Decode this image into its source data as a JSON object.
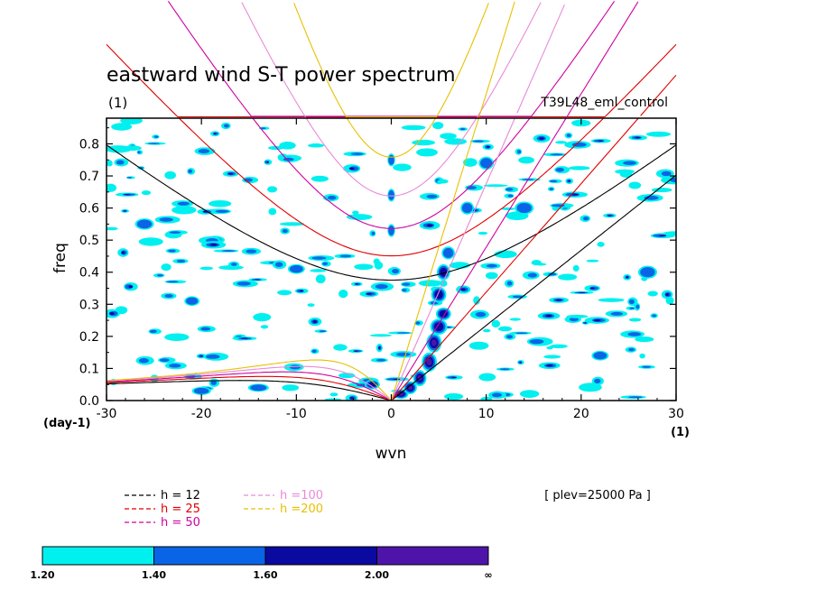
{
  "chart_data": {
    "type": "heatmap",
    "title": "eastward wind S-T power spectrum",
    "units_label": "(1)",
    "run_label": "T39L48_eml_control",
    "level_label": "[ plev=25000 Pa ]",
    "xlabel": "wvn",
    "ylabel": "freq",
    "x_units": "(1)",
    "y_units": "(day-1)",
    "xlim": [
      -30,
      30
    ],
    "ylim": [
      0,
      0.88
    ],
    "x_ticks": [
      -30,
      -20,
      -10,
      0,
      10,
      20,
      30
    ],
    "y_ticks": [
      0.0,
      0.1,
      0.2,
      0.3,
      0.4,
      0.5,
      0.6,
      0.7,
      0.8
    ],
    "x_tick_labels": [
      "-30",
      "-20",
      "-10",
      "0",
      "10",
      "20",
      "30"
    ],
    "y_tick_labels": [
      "0.0",
      "0.1",
      "0.2",
      "0.3",
      "0.4",
      "0.5",
      "0.6",
      "0.7",
      "0.8"
    ],
    "contour_levels": [
      "1.20",
      "1.40",
      "1.60",
      "2.00",
      "∞"
    ],
    "contour_colors": [
      "#00f0f0",
      "#0a64e6",
      "#0a0aa0",
      "#4e14aa"
    ],
    "dispersion_curves": [
      {
        "label": "h = 12",
        "h": 12,
        "color": "#000000"
      },
      {
        "label": "h = 25",
        "h": 25,
        "color": "#e00000"
      },
      {
        "label": "h = 50",
        "h": 50,
        "color": "#d000a0"
      },
      {
        "label": "h =100",
        "h": 100,
        "color": "#e88ad8"
      },
      {
        "label": "h =200",
        "h": 200,
        "color": "#e8c000"
      }
    ],
    "spectral_peaks": [
      {
        "x": 1,
        "y": 0.02,
        "w": 1.6,
        "h": 0.03,
        "level": 3
      },
      {
        "x": 2,
        "y": 0.04,
        "w": 1.4,
        "h": 0.04,
        "level": 3
      },
      {
        "x": 3,
        "y": 0.07,
        "w": 1.4,
        "h": 0.05,
        "level": 3
      },
      {
        "x": 4,
        "y": 0.12,
        "w": 1.6,
        "h": 0.06,
        "level": 3
      },
      {
        "x": 4.5,
        "y": 0.18,
        "w": 1.6,
        "h": 0.06,
        "level": 3
      },
      {
        "x": 5,
        "y": 0.23,
        "w": 1.8,
        "h": 0.05,
        "level": 2
      },
      {
        "x": 5.5,
        "y": 0.27,
        "w": 1.6,
        "h": 0.04,
        "level": 2
      },
      {
        "x": 5,
        "y": 0.33,
        "w": 1.6,
        "h": 0.05,
        "level": 2
      },
      {
        "x": 5.5,
        "y": 0.4,
        "w": 1.4,
        "h": 0.05,
        "level": 2
      },
      {
        "x": 6,
        "y": 0.46,
        "w": 1.4,
        "h": 0.04,
        "level": 1
      },
      {
        "x": 8,
        "y": 0.6,
        "w": 1.4,
        "h": 0.04,
        "level": 1
      },
      {
        "x": 10,
        "y": 0.74,
        "w": 1.6,
        "h": 0.04,
        "level": 1
      },
      {
        "x": 0,
        "y": 0.75,
        "w": 0.8,
        "h": 0.04,
        "level": 1
      },
      {
        "x": 0,
        "y": 0.64,
        "w": 0.8,
        "h": 0.04,
        "level": 1
      },
      {
        "x": 0,
        "y": 0.53,
        "w": 0.8,
        "h": 0.04,
        "level": 1
      },
      {
        "x": -2,
        "y": 0.05,
        "w": 1.6,
        "h": 0.03,
        "level": 2
      },
      {
        "x": -14,
        "y": 0.04,
        "w": 2.2,
        "h": 0.025,
        "level": 1
      },
      {
        "x": -20,
        "y": 0.03,
        "w": 2.0,
        "h": 0.025,
        "level": 1
      },
      {
        "x": -10,
        "y": 0.41,
        "w": 1.8,
        "h": 0.03,
        "level": 1
      },
      {
        "x": -21,
        "y": 0.31,
        "w": 1.6,
        "h": 0.03,
        "level": 1
      },
      {
        "x": 14,
        "y": 0.6,
        "w": 2.0,
        "h": 0.04,
        "level": 1
      },
      {
        "x": 27,
        "y": 0.4,
        "w": 2.0,
        "h": 0.04,
        "level": 1
      },
      {
        "x": 22,
        "y": 0.14,
        "w": 1.8,
        "h": 0.03,
        "level": 1
      },
      {
        "x": -26,
        "y": 0.55,
        "w": 2.0,
        "h": 0.035,
        "level": 1
      }
    ]
  }
}
